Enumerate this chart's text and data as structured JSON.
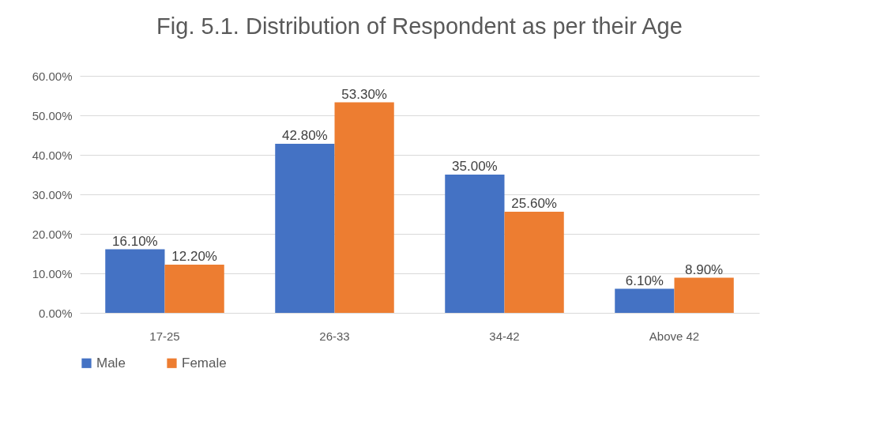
{
  "chart_data": {
    "type": "bar",
    "title": "Fig. 5.1.  Distribution of Respondent as per their Age",
    "categories": [
      "17-25",
      "26-33",
      "34-42",
      "Above 42"
    ],
    "series": [
      {
        "name": "Male",
        "color": "#4472c4",
        "values": [
          16.1,
          42.8,
          35.0,
          6.1
        ],
        "value_labels": [
          "16.10%",
          "42.80%",
          "35.00%",
          "6.10%"
        ]
      },
      {
        "name": "Female",
        "color": "#ed7d31",
        "values": [
          12.2,
          53.3,
          25.6,
          8.9
        ],
        "value_labels": [
          "12.20%",
          "53.30%",
          "25.60%",
          "8.90%"
        ]
      }
    ],
    "ylim": [
      0,
      60
    ],
    "yticks": [
      {
        "value": 0,
        "label": "0.00%"
      },
      {
        "value": 10,
        "label": "10.00%"
      },
      {
        "value": 20,
        "label": "20.00%"
      },
      {
        "value": 30,
        "label": "30.00%"
      },
      {
        "value": 40,
        "label": "40.00%"
      },
      {
        "value": 50,
        "label": "50.00%"
      },
      {
        "value": 60,
        "label": "60.00%"
      }
    ],
    "grid": "y",
    "legend": "bottom"
  }
}
